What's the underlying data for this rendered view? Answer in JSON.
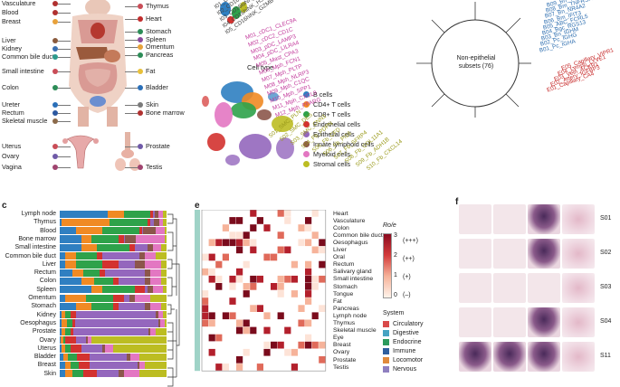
{
  "panel_a": {
    "left_labels": [
      "Vasculature",
      "Blood",
      "Breast",
      "Liver",
      "Kidney",
      "Common bile duct",
      "Small intestine",
      "Colon",
      "Ureter",
      "Rectum",
      "Skeletal muscle",
      "Uterus",
      "Ovary",
      "Vagina"
    ],
    "right_labels": [
      "Thymus",
      "Heart",
      "Stomach",
      "Spleen",
      "Omentum",
      "Pancreas",
      "Fat",
      "Bladder",
      "Skin",
      "Bone marrow",
      "Prostate",
      "Testis"
    ],
    "left_colors": [
      "#b0302f",
      "#b0302f",
      "#e8a13a",
      "#8a5a3c",
      "#3a6fb0",
      "#2c9a8c",
      "#c94d57",
      "#2c8c57",
      "#2a6fb8",
      "#2c58a0",
      "#8b6a4a",
      "#c94d57",
      "#6f5aa8",
      "#a0446f"
    ],
    "right_colors": [
      "#c94d57",
      "#c12d2d",
      "#2c8c57",
      "#8a4a9c",
      "#e6a23a",
      "#2c8c57",
      "#e8c03a",
      "#2a6fb8",
      "#7a7a7a",
      "#b0302f",
      "#6f5aa8",
      "#a0446f"
    ]
  },
  "panel_b": {
    "title": "Cell type",
    "legend": [
      {
        "label": "B cells",
        "color": "#2f7fc1"
      },
      {
        "label": "CD4+ T cells",
        "color": "#f08a24"
      },
      {
        "label": "CD8+ T cells",
        "color": "#2ea24a"
      },
      {
        "label": "Endothelial cells",
        "color": "#d3322f"
      },
      {
        "label": "Epithelial cells",
        "color": "#9467bd"
      },
      {
        "label": "Innate lymphoid cells",
        "color": "#8c564b"
      },
      {
        "label": "Myeloid cells",
        "color": "#e377c2"
      },
      {
        "label": "Stromal cells",
        "color": "#bcbd22"
      }
    ]
  },
  "panel_tree": {
    "center_label": "Non-epithelial subsets (76)",
    "top_left_labels": [
      "I01_CD16hiNK_CREM",
      "I02_CD16hiNK_CREM",
      "I03_CD16loNK_TXK",
      "I04_CD16hiNK_HSPA1A",
      "I05_CD16hiNK_GZMB"
    ],
    "magenta_labels": [
      "M01_cDC1_CLEC9A",
      "M02_cDC2_CD1C",
      "M03_pDC_LAMP3",
      "M04_pDC_LILRA4",
      "M05_Mast_CPA3",
      "M06_Mph_FCN1",
      "M07_Mph_PLTP",
      "M08_Mph_NLRP3",
      "M09_Mph_C1QC",
      "M10_Mph_SPP1",
      "M11_Mph_CXCL9",
      "M12_Mph_PPARG"
    ],
    "olive_labels": [
      "S01_SMC_PLN",
      "S02_SMC_DES",
      "S03_SMC_CNN1",
      "S04_Fb_PDPN",
      "S05_Fb_CFD",
      "S06_Fb_PI16",
      "S07_Fb_SFRP4",
      "S08_Fb_COL11A1",
      "S09_Fb_ADH1B",
      "S10_Fb_CXCL14"
    ],
    "blue_labels": [
      "B09_Bn_TCL1A",
      "B08_Bm_TNFRSF13B",
      "B07_Bn_NR4A2",
      "B06_Bm_IFIT3",
      "B05_ABC_FCRL5",
      "B04_Bgc_RGS13",
      "B03_Bn_IGHM",
      "B02_Pc_IGHG",
      "B01_Pc_IGHA"
    ],
    "red_labels": [
      "E05_Capillary_VIPR1",
      "E04_Lymph_LYVE1",
      "E03_Vein_ACKR1",
      "E02_Artery_IGFBP3",
      "E01_Capillary_CA4"
    ]
  },
  "panel_c": {
    "letter": "c",
    "rows": [
      "Lymph node",
      "Thymus",
      "Blood",
      "Bone marrow",
      "Small intestine",
      "Common bile duct",
      "Liver",
      "Rectum",
      "Colon",
      "Spleen",
      "Omentum",
      "Stomach",
      "Kidney",
      "Oesophagus",
      "Prostate",
      "Ovary",
      "Uterus",
      "Bladder",
      "Breast",
      "Skin"
    ],
    "series_colors": [
      "#2f7fc1",
      "#f08a24",
      "#2ea24a",
      "#d3322f",
      "#9467bd",
      "#8c564b",
      "#e377c2",
      "#bcbd22"
    ],
    "fractions": [
      [
        0.45,
        0.15,
        0.25,
        0.02,
        0.02,
        0.03,
        0.05,
        0.03
      ],
      [
        0.02,
        0.45,
        0.35,
        0.03,
        0.03,
        0.05,
        0.04,
        0.03
      ],
      [
        0.15,
        0.25,
        0.35,
        0.02,
        0.01,
        0.12,
        0.08,
        0.02
      ],
      [
        0.2,
        0.1,
        0.25,
        0.05,
        0.01,
        0.1,
        0.27,
        0.02
      ],
      [
        0.2,
        0.15,
        0.3,
        0.05,
        0.12,
        0.05,
        0.08,
        0.05
      ],
      [
        0.05,
        0.1,
        0.2,
        0.05,
        0.35,
        0.05,
        0.1,
        0.1
      ],
      [
        0.05,
        0.1,
        0.25,
        0.15,
        0.15,
        0.1,
        0.15,
        0.05
      ],
      [
        0.12,
        0.1,
        0.15,
        0.05,
        0.38,
        0.05,
        0.1,
        0.05
      ],
      [
        0.2,
        0.12,
        0.18,
        0.05,
        0.25,
        0.05,
        0.1,
        0.05
      ],
      [
        0.3,
        0.1,
        0.3,
        0.1,
        0.02,
        0.05,
        0.1,
        0.03
      ],
      [
        0.05,
        0.2,
        0.25,
        0.1,
        0.05,
        0.05,
        0.15,
        0.15
      ],
      [
        0.15,
        0.15,
        0.2,
        0.05,
        0.25,
        0.05,
        0.1,
        0.05
      ],
      [
        0.02,
        0.03,
        0.05,
        0.05,
        0.75,
        0.02,
        0.05,
        0.03
      ],
      [
        0.02,
        0.05,
        0.05,
        0.02,
        0.78,
        0.02,
        0.04,
        0.02
      ],
      [
        0.02,
        0.03,
        0.05,
        0.03,
        0.7,
        0.02,
        0.05,
        0.1
      ],
      [
        0.01,
        0.02,
        0.02,
        0.1,
        0.1,
        0.01,
        0.04,
        0.7
      ],
      [
        0.02,
        0.03,
        0.05,
        0.1,
        0.2,
        0.02,
        0.08,
        0.5
      ],
      [
        0.03,
        0.05,
        0.08,
        0.12,
        0.35,
        0.03,
        0.09,
        0.25
      ],
      [
        0.05,
        0.05,
        0.08,
        0.1,
        0.45,
        0.02,
        0.05,
        0.2
      ],
      [
        0.05,
        0.07,
        0.1,
        0.13,
        0.2,
        0.05,
        0.15,
        0.25
      ]
    ]
  },
  "panel_e": {
    "letter": "e",
    "tissues": [
      "Heart",
      "Vasculature",
      "Colon",
      "Common bile duct",
      "Oesophagus",
      "Liver",
      "Oral",
      "Rectum",
      "Salivary gland",
      "Small intestine",
      "Stomach",
      "Tongue",
      "Fat",
      "Pancreas",
      "Lymph node",
      "Thymus",
      "Skeletal muscle",
      "Eye",
      "Breast",
      "Ovary",
      "Prostate",
      "Testis"
    ],
    "scale_title": "Ro/e",
    "scale_ticks": [
      "3",
      "2",
      "1",
      "0"
    ],
    "scale_marks": [
      "(+++)",
      "(++)",
      "(+)",
      "(–)"
    ],
    "system_title": "System",
    "systems": [
      {
        "label": "Circulatory",
        "color": "#d94a4a"
      },
      {
        "label": "Digestive",
        "color": "#46a3c2"
      },
      {
        "label": "Endocrine",
        "color": "#2c9a5c"
      },
      {
        "label": "Immune",
        "color": "#2f5f9e"
      },
      {
        "label": "Locomotor",
        "color": "#e08a3c"
      },
      {
        "label": "Nervous",
        "color": "#8f7fc0"
      }
    ]
  },
  "panel_f": {
    "letter": "f",
    "rows": [
      "S01",
      "S02",
      "S03",
      "S04",
      "S11"
    ]
  }
}
